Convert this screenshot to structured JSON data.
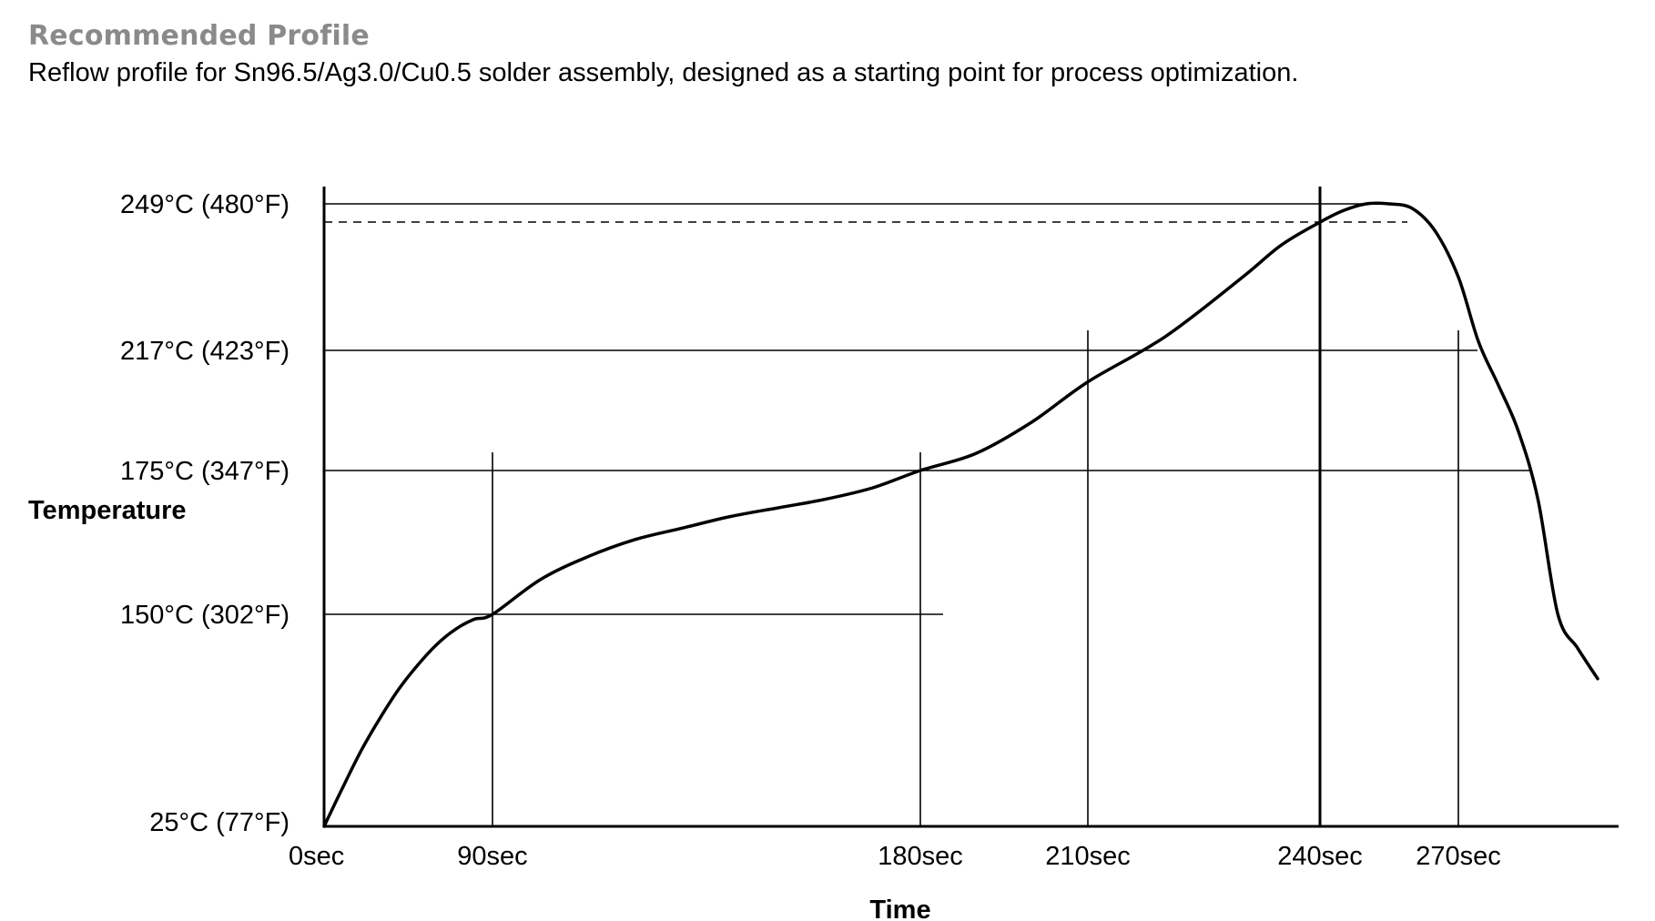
{
  "header": {
    "title": "Recommended Profile",
    "subtitle": "Reflow profile for Sn96.5/Ag3.0/Cu0.5 solder assembly, designed as a starting point for process optimization."
  },
  "chart_data": {
    "type": "line",
    "title": "Recommended Profile",
    "xlabel": "Time",
    "ylabel": "Temperature",
    "x_ticks": [
      {
        "value": 0,
        "label": "0sec"
      },
      {
        "value": 90,
        "label": "90sec"
      },
      {
        "value": 180,
        "label": "180sec"
      },
      {
        "value": 210,
        "label": "210sec"
      },
      {
        "value": 240,
        "label": "240sec"
      },
      {
        "value": 270,
        "label": "270sec"
      }
    ],
    "y_ticks": [
      {
        "value": 25,
        "label": "25°C (77°F)"
      },
      {
        "value": 150,
        "label": "150°C (302°F)"
      },
      {
        "value": 175,
        "label": "175°C (347°F)"
      },
      {
        "value": 217,
        "label": "217°C (423°F)"
      },
      {
        "value": 249,
        "label": "249°C (480°F)"
      }
    ],
    "series": [
      {
        "x": [
          0,
          10,
          20,
          30,
          40,
          50,
          60,
          70,
          80,
          90,
          100,
          110,
          120,
          130,
          140,
          150,
          160,
          170,
          180,
          190,
          200,
          210,
          220,
          230,
          235,
          240,
          245,
          250,
          255,
          260,
          265,
          270,
          275,
          280,
          285,
          290,
          295,
          300,
          305
        ],
        "y": [
          25,
          48,
          70,
          89,
          106,
          120,
          132,
          141,
          147,
          150,
          156,
          160,
          163,
          165,
          167,
          168.5,
          170,
          172,
          175,
          181,
          192,
          206,
          220,
          233,
          240,
          245,
          247.5,
          249,
          249,
          248,
          243,
          233,
          219,
          205,
          189,
          170,
          150,
          130,
          112
        ]
      }
    ],
    "reference_lines": [
      {
        "axis": "y",
        "value": 249,
        "style": "solid"
      },
      {
        "axis": "y",
        "value": 242,
        "style": "dashed"
      },
      {
        "axis": "x",
        "value": 240,
        "style": "bold"
      }
    ],
    "xlim": [
      0,
      305
    ],
    "ylim": [
      25,
      249
    ],
    "grid": false,
    "legend": "none"
  }
}
